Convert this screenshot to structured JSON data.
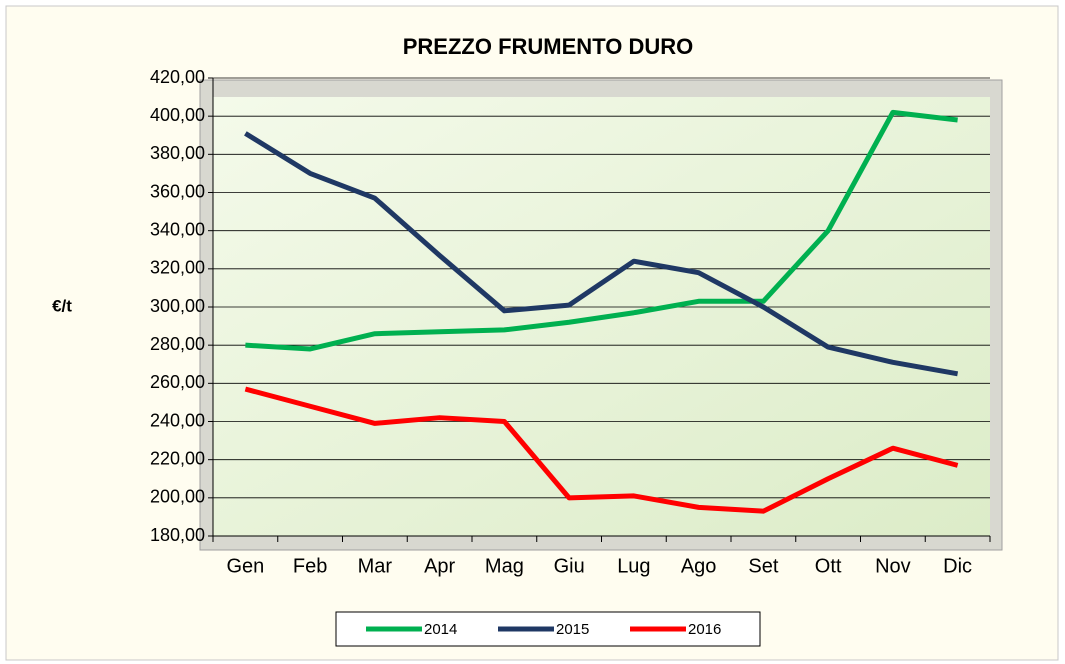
{
  "chart_data": {
    "type": "line",
    "title": "PREZZO FRUMENTO DURO",
    "y_label": "€/t",
    "categories": [
      "Gen",
      "Feb",
      "Mar",
      "Apr",
      "Mag",
      "Giu",
      "Lug",
      "Ago",
      "Set",
      "Ott",
      "Nov",
      "Dic"
    ],
    "series": [
      {
        "name": "2014",
        "color": "#00b050",
        "values": [
          280,
          278,
          286,
          287,
          288,
          292,
          297,
          303,
          303,
          340,
          402,
          398
        ]
      },
      {
        "name": "2015",
        "color": "#1f3864",
        "values": [
          391,
          370,
          357,
          327,
          298,
          301,
          324,
          318,
          300,
          279,
          271,
          265
        ]
      },
      {
        "name": "2016",
        "color": "#ff0000",
        "values": [
          257,
          248,
          239,
          242,
          240,
          200,
          201,
          195,
          193,
          210,
          226,
          217
        ]
      }
    ],
    "ylim": [
      180,
      420
    ],
    "yticks": [
      {
        "value": 180,
        "label": "180,00"
      },
      {
        "value": 200,
        "label": "200,00"
      },
      {
        "value": 220,
        "label": "220,00"
      },
      {
        "value": 240,
        "label": "240,00"
      },
      {
        "value": 260,
        "label": "260,00"
      },
      {
        "value": 280,
        "label": "280,00"
      },
      {
        "value": 300,
        "label": "300,00"
      },
      {
        "value": 320,
        "label": "320,00"
      },
      {
        "value": 340,
        "label": "340,00"
      },
      {
        "value": 360,
        "label": "360,00"
      },
      {
        "value": 380,
        "label": "380,00"
      },
      {
        "value": 400,
        "label": "400,00"
      },
      {
        "value": 420,
        "label": "420,00"
      }
    ],
    "grid": true,
    "legend": "bottom"
  }
}
